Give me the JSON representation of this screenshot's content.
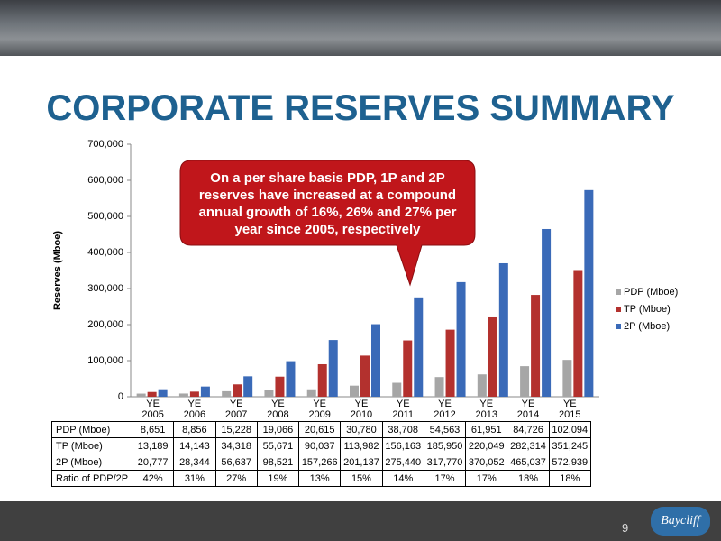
{
  "title": "CORPORATE RESERVES SUMMARY",
  "callout": "On a per share basis PDP, 1P and 2P reserves have increased at a compound annual growth of 16%, 26% and 27% per year since 2005, respectively",
  "page_number": "9",
  "logo": "Baycliff",
  "chart_data": {
    "type": "bar",
    "y_label": "Reserves (Mboe)",
    "categories": [
      "YE 2005",
      "YE 2006",
      "YE 2007",
      "YE 2008",
      "YE 2009",
      "YE 2010",
      "YE 2011",
      "YE 2012",
      "YE 2013",
      "YE 2014",
      "YE 2015"
    ],
    "series": [
      {
        "name": "PDP (Mboe)",
        "color": "#a6a6a6",
        "values": [
          8651,
          8856,
          15228,
          19066,
          20615,
          30780,
          38708,
          54563,
          61951,
          84726,
          102094
        ],
        "value_labels": [
          "8,651",
          "8,856",
          "15,228",
          "19,066",
          "20,615",
          "30,780",
          "38,708",
          "54,563",
          "61,951",
          "84,726",
          "102,094"
        ]
      },
      {
        "name": "TP (Mboe)",
        "color": "#b3312e",
        "values": [
          13189,
          14143,
          34318,
          55671,
          90037,
          113982,
          156163,
          185950,
          220049,
          282314,
          351245
        ],
        "value_labels": [
          "13,189",
          "14,143",
          "34,318",
          "55,671",
          "90,037",
          "113,982",
          "156,163",
          "185,950",
          "220,049",
          "282,314",
          "351,245"
        ]
      },
      {
        "name": "2P (Mboe)",
        "color": "#3a6ab8",
        "values": [
          20777,
          28344,
          56637,
          98521,
          157266,
          201137,
          275440,
          317770,
          370052,
          465037,
          572939
        ],
        "value_labels": [
          "20,777",
          "28,344",
          "56,637",
          "98,521",
          "157,266",
          "201,137",
          "275,440",
          "317,770",
          "370,052",
          "465,037",
          "572,939"
        ]
      }
    ],
    "ratio_row": {
      "name": "Ratio of PDP/2P",
      "values": [
        42,
        31,
        27,
        19,
        13,
        15,
        14,
        17,
        17,
        18,
        18
      ],
      "value_labels": [
        "42%",
        "31%",
        "27%",
        "19%",
        "13%",
        "15%",
        "14%",
        "17%",
        "17%",
        "18%",
        "18%"
      ]
    },
    "ylim": [
      0,
      700000
    ],
    "yticks": [
      0,
      {
        "value": 100000,
        "label": "100,000"
      },
      {
        "value": 200000,
        "label": "200,000"
      },
      {
        "value": 300000,
        "label": "300,000"
      },
      {
        "value": 400000,
        "label": "400,000"
      },
      {
        "value": 500000,
        "label": "500,000"
      },
      {
        "value": 600000,
        "label": "600,000"
      },
      {
        "value": 700000,
        "label": "700,000"
      }
    ],
    "legend": "right"
  }
}
